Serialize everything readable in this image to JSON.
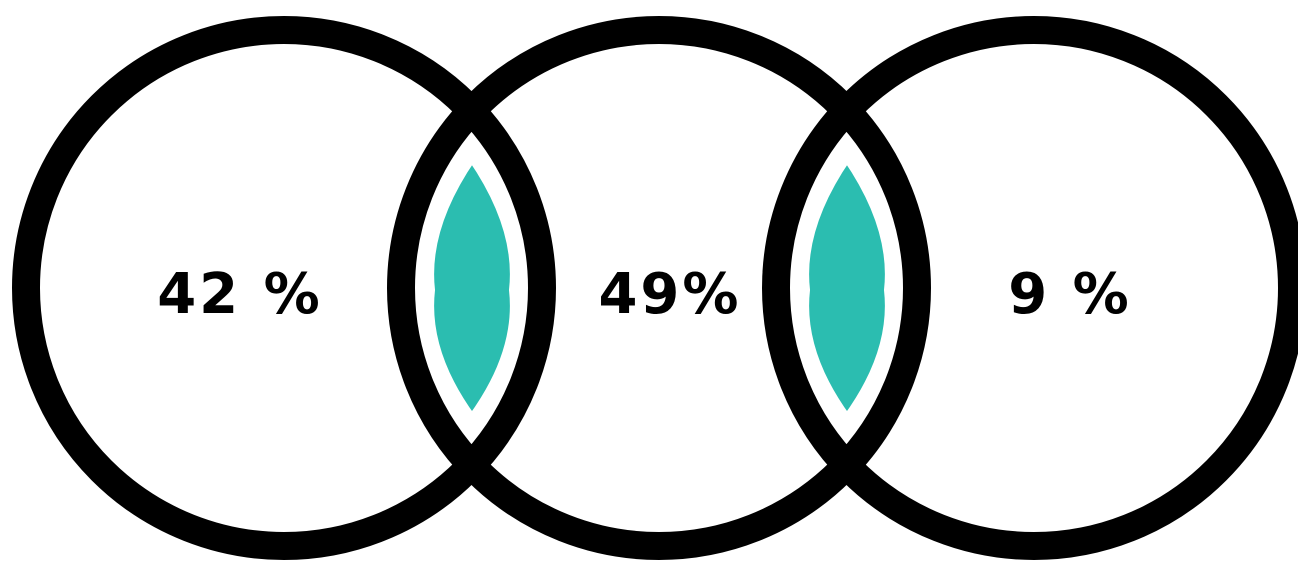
{
  "diagram": {
    "colors": {
      "ring": "#000000",
      "background": "#ffffff",
      "overlap_fill": "#2bbdb0"
    },
    "circles": [
      {
        "id": "left",
        "label": "42 %"
      },
      {
        "id": "middle",
        "label": "49%"
      },
      {
        "id": "right",
        "label": "9 %"
      }
    ]
  }
}
